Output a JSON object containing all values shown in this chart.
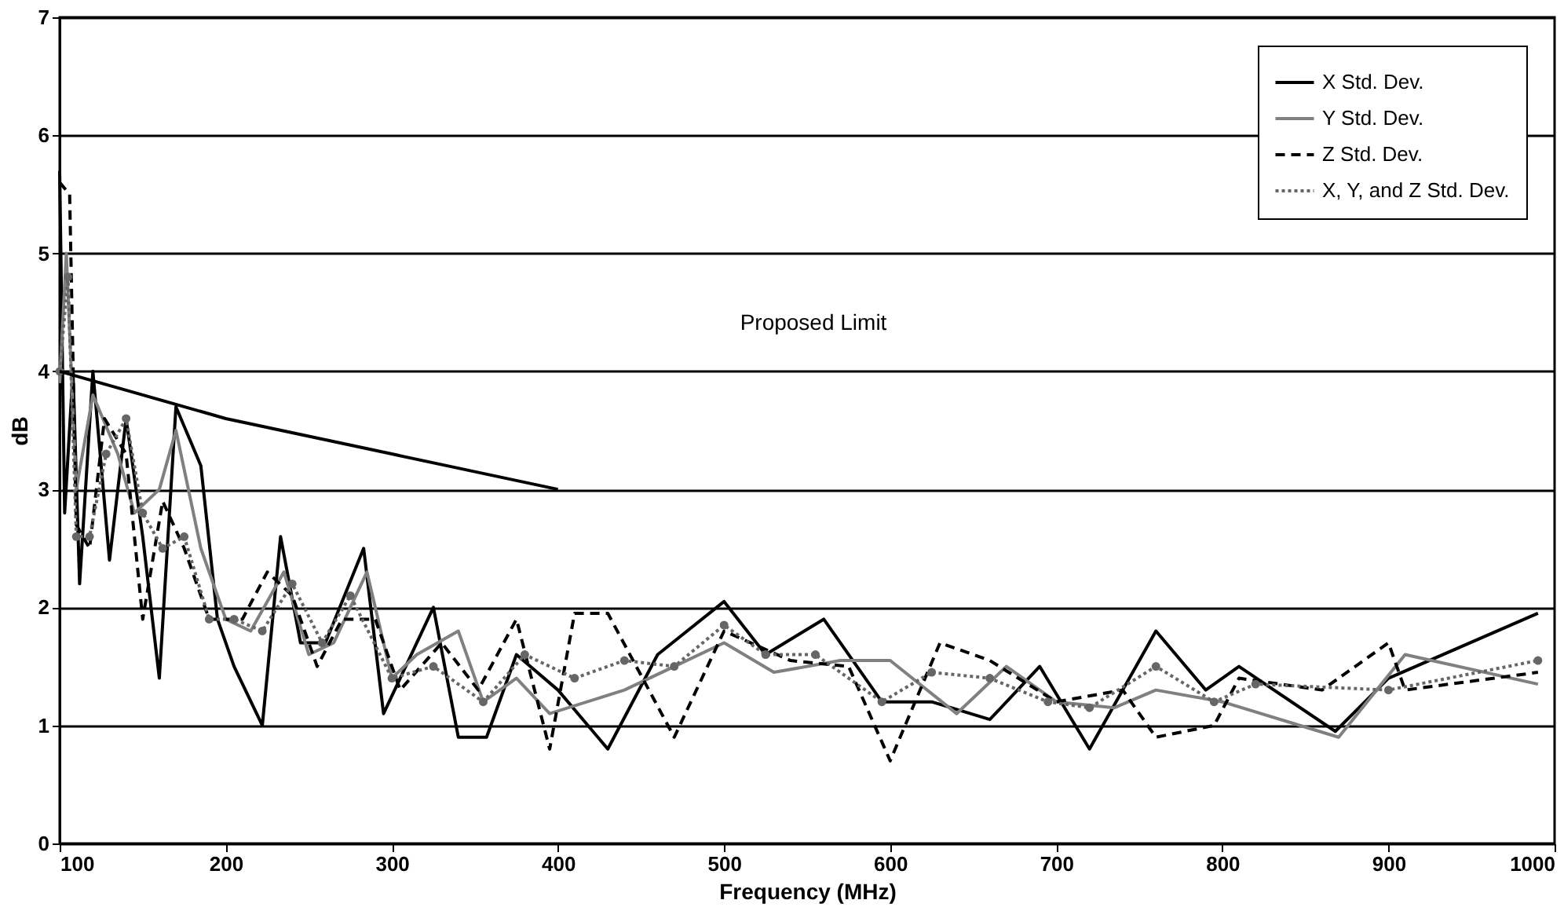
{
  "chart_data": {
    "type": "line",
    "xlabel": "Frequency (MHz)",
    "ylabel": "dB",
    "xlim": [
      100,
      1000
    ],
    "xticks": [
      100,
      200,
      300,
      400,
      500,
      600,
      700,
      800,
      900,
      1000
    ],
    "ylim": [
      0,
      7
    ],
    "yticks": [
      0,
      1,
      2,
      3,
      4,
      5,
      6,
      7
    ],
    "grid": "y",
    "legend": "top right",
    "annotations": [
      "Proposed Limit"
    ],
    "series": [
      {
        "name": "X Std. Dev.",
        "color": "#000000",
        "line_style": "solid",
        "marker": "none",
        "x": [
          100,
          103,
          108,
          112,
          120,
          130,
          140,
          150,
          160,
          170,
          185,
          195,
          205,
          222,
          233,
          245,
          260,
          283,
          295,
          325,
          340,
          357,
          375,
          400,
          430,
          460,
          500,
          525,
          560,
          595,
          625,
          660,
          690,
          720,
          760,
          790,
          810,
          868,
          900,
          990
        ],
        "values": [
          5.7,
          2.8,
          4.0,
          2.2,
          4.0,
          2.4,
          3.6,
          2.6,
          1.4,
          3.7,
          3.2,
          1.9,
          1.5,
          1.0,
          2.6,
          1.7,
          1.7,
          2.5,
          1.1,
          2.0,
          0.9,
          0.9,
          1.6,
          1.3,
          0.8,
          1.6,
          2.05,
          1.6,
          1.9,
          1.2,
          1.2,
          1.05,
          1.5,
          0.8,
          1.8,
          1.3,
          1.5,
          0.95,
          1.4,
          1.95
        ]
      },
      {
        "name": "Y Std. Dev.",
        "color": "#808080",
        "line_style": "solid",
        "marker": "none",
        "x": [
          100,
          104,
          110,
          120,
          135,
          145,
          160,
          170,
          185,
          200,
          215,
          235,
          250,
          265,
          285,
          300,
          315,
          340,
          355,
          375,
          395,
          440,
          470,
          500,
          530,
          570,
          600,
          640,
          670,
          700,
          735,
          760,
          800,
          870,
          910,
          990
        ],
        "values": [
          3.9,
          5.0,
          3.0,
          3.8,
          3.3,
          2.8,
          3.0,
          3.5,
          2.5,
          1.9,
          1.8,
          2.3,
          1.6,
          1.7,
          2.3,
          1.4,
          1.6,
          1.8,
          1.2,
          1.4,
          1.1,
          1.3,
          1.5,
          1.7,
          1.45,
          1.55,
          1.55,
          1.1,
          1.5,
          1.2,
          1.15,
          1.3,
          1.2,
          0.9,
          1.6,
          1.35
        ]
      },
      {
        "name": "Z Std. Dev.",
        "color": "#000000",
        "line_style": "dashed",
        "marker": "none",
        "x": [
          100,
          106,
          110,
          118,
          127,
          140,
          150,
          162,
          175,
          190,
          210,
          225,
          240,
          255,
          270,
          290,
          305,
          330,
          352,
          375,
          395,
          410,
          430,
          470,
          500,
          540,
          575,
          600,
          630,
          660,
          700,
          740,
          760,
          795,
          810,
          860,
          900,
          910,
          990
        ],
        "values": [
          5.6,
          5.5,
          2.7,
          2.5,
          3.6,
          3.3,
          1.9,
          2.9,
          2.5,
          1.9,
          1.9,
          2.3,
          2.1,
          1.5,
          1.9,
          1.9,
          1.3,
          1.7,
          1.3,
          1.9,
          0.8,
          1.95,
          1.95,
          0.9,
          1.8,
          1.55,
          1.5,
          0.7,
          1.7,
          1.55,
          1.2,
          1.3,
          0.9,
          1.0,
          1.4,
          1.3,
          1.7,
          1.3,
          1.45
        ]
      },
      {
        "name": "X, Y, and Z Std. Dev.",
        "color": "#666666",
        "line_style": "dotted",
        "marker": "circle",
        "x": [
          100,
          105,
          110,
          118,
          128,
          140,
          150,
          162,
          175,
          190,
          205,
          222,
          240,
          258,
          275,
          300,
          325,
          355,
          380,
          410,
          440,
          470,
          500,
          525,
          555,
          595,
          625,
          660,
          695,
          720,
          760,
          795,
          820,
          900,
          990
        ],
        "values": [
          4.0,
          4.8,
          2.6,
          2.6,
          3.3,
          3.6,
          2.8,
          2.5,
          2.6,
          1.9,
          1.9,
          1.8,
          2.2,
          1.7,
          2.1,
          1.4,
          1.5,
          1.2,
          1.6,
          1.4,
          1.55,
          1.5,
          1.85,
          1.6,
          1.6,
          1.2,
          1.45,
          1.4,
          1.2,
          1.15,
          1.5,
          1.2,
          1.35,
          1.3,
          1.55
        ]
      },
      {
        "color": "#000000",
        "line_style": "solid",
        "marker": "none",
        "x": [
          100,
          150,
          200,
          250,
          300,
          350,
          400
        ],
        "values": [
          4.0,
          3.8,
          3.6,
          3.45,
          3.3,
          3.15,
          3.0
        ]
      }
    ]
  }
}
